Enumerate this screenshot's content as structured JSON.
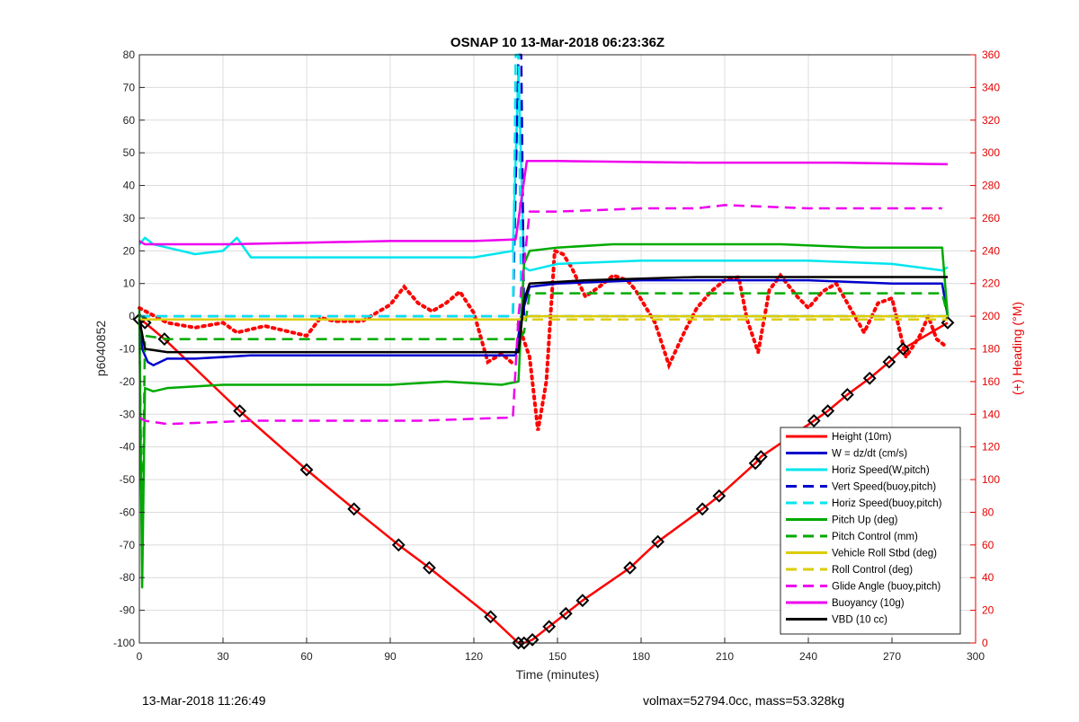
{
  "chart_data": {
    "type": "line",
    "title": "OSNAP 10 13-Mar-2018 06:23:36Z",
    "xlabel": "Time (minutes)",
    "ylabel": "p6040852",
    "y2label": "(+) Heading (°M)",
    "xlim": [
      0,
      300
    ],
    "ylim": [
      -100,
      80
    ],
    "y2lim": [
      0,
      360
    ],
    "xticks": [
      0,
      30,
      60,
      90,
      120,
      150,
      180,
      210,
      240,
      270,
      300
    ],
    "yticks": [
      -100,
      -90,
      -80,
      -70,
      -60,
      -50,
      -40,
      -30,
      -20,
      -10,
      0,
      10,
      20,
      30,
      40,
      50,
      60,
      70,
      80
    ],
    "y2ticks": [
      0,
      20,
      40,
      60,
      80,
      100,
      120,
      140,
      160,
      180,
      200,
      220,
      240,
      260,
      280,
      300,
      320,
      340,
      360
    ],
    "grid": true,
    "legend_position": "bottom-right",
    "series": [
      {
        "name": "Height (10m)",
        "color": "#ff0000",
        "style": "solid",
        "markers": true,
        "x": [
          0,
          2,
          9,
          36,
          60,
          77,
          93,
          104,
          126,
          136,
          138,
          141,
          147,
          153,
          159,
          176,
          186,
          202,
          208,
          221,
          223,
          242,
          247,
          254,
          262,
          269,
          274,
          290
        ],
        "y": [
          -1,
          -2,
          -7,
          -29,
          -47,
          -59,
          -70,
          -77,
          -92,
          -100,
          -100,
          -99,
          -95,
          -91,
          -87,
          -77,
          -69,
          -59,
          -55,
          -45,
          -43,
          -32,
          -29,
          -24,
          -19,
          -14,
          -10,
          -2
        ]
      },
      {
        "name": "W = dz/dt (cm/s)",
        "color": "#0000cc",
        "style": "solid",
        "x": [
          0,
          1,
          3,
          5,
          10,
          20,
          40,
          60,
          90,
          120,
          135,
          137,
          140,
          150,
          180,
          210,
          240,
          270,
          288,
          290
        ],
        "y": [
          0,
          -10,
          -14,
          -15,
          -13,
          -13,
          -12,
          -12,
          -12,
          -12,
          -12,
          0,
          9,
          10,
          11,
          11,
          11,
          10,
          10,
          0
        ]
      },
      {
        "name": "Horiz Speed(W,pitch)",
        "color": "#00e5ee",
        "style": "solid",
        "x": [
          0,
          2,
          5,
          10,
          20,
          30,
          35,
          40,
          60,
          90,
          120,
          134,
          136,
          138,
          140,
          150,
          180,
          210,
          240,
          270,
          288,
          290
        ],
        "y": [
          22,
          24,
          22,
          21,
          19,
          20,
          24,
          18,
          18,
          18,
          18,
          20,
          76,
          15,
          14,
          16,
          17,
          17,
          17,
          16,
          14,
          15
        ]
      },
      {
        "name": "Vert Speed(buoy,pitch)",
        "color": "#0000cc",
        "style": "dashed",
        "x": [
          0,
          10,
          134,
          136,
          137,
          138,
          140,
          290
        ],
        "y": [
          0,
          0,
          0,
          80,
          80,
          0,
          0,
          0
        ]
      },
      {
        "name": "Horiz Speed(buoy,pitch)",
        "color": "#00e5ee",
        "style": "dashed",
        "x": [
          0,
          10,
          134,
          135,
          136,
          137,
          140,
          290
        ],
        "y": [
          0,
          0,
          0,
          80,
          80,
          0,
          0,
          0
        ]
      },
      {
        "name": "Pitch Up (deg)",
        "color": "#00aa00",
        "style": "solid",
        "x": [
          0,
          1,
          2,
          5,
          10,
          30,
          60,
          90,
          110,
          130,
          136,
          138,
          140,
          150,
          170,
          200,
          230,
          260,
          288,
          290
        ],
        "y": [
          0,
          -83,
          -22,
          -23,
          -22,
          -21,
          -21,
          -21,
          -20,
          -21,
          -20,
          16,
          20,
          21,
          22,
          22,
          22,
          21,
          21,
          0
        ]
      },
      {
        "name": "Pitch Control (mm)",
        "color": "#00aa00",
        "style": "dashed",
        "x": [
          0,
          1,
          2,
          10,
          60,
          136,
          138,
          140,
          150,
          288,
          290
        ],
        "y": [
          2,
          -75,
          -6,
          -7,
          -7,
          -7,
          -5,
          7,
          7,
          7,
          0
        ]
      },
      {
        "name": "Vehicle Roll Stbd (deg)",
        "color": "#ddcc00",
        "style": "solid",
        "x": [
          0,
          10,
          60,
          120,
          136,
          140,
          200,
          260,
          290
        ],
        "y": [
          -1,
          -1,
          -1,
          -1,
          -1,
          0,
          0,
          0,
          0
        ]
      },
      {
        "name": "Roll Control (deg)",
        "color": "#ddcc00",
        "style": "dashed",
        "x": [
          0,
          10,
          60,
          120,
          136,
          140,
          200,
          260,
          290
        ],
        "y": [
          -1,
          -1,
          -1,
          -1,
          -1,
          -1,
          -1,
          -1,
          -1
        ]
      },
      {
        "name": "Glide Angle (buoy,pitch)",
        "color": "#ee00ee",
        "style": "dashed",
        "x": [
          0,
          2,
          10,
          40,
          70,
          100,
          134,
          136,
          140,
          150,
          180,
          200,
          210,
          240,
          270,
          288
        ],
        "y": [
          -31,
          -32,
          -33,
          -32,
          -32,
          -32,
          -31,
          0,
          32,
          32,
          33,
          33,
          34,
          33,
          33,
          33
        ]
      },
      {
        "name": "Buoyancy (10g)",
        "color": "#ee00ee",
        "style": "solid",
        "x": [
          0,
          2,
          30,
          60,
          90,
          120,
          135,
          139,
          150,
          200,
          250,
          290
        ],
        "y": [
          23,
          22,
          22,
          22.5,
          23,
          23,
          23.5,
          47.5,
          47.5,
          47,
          47,
          46.5
        ]
      },
      {
        "name": "VBD (10 cc)",
        "color": "#000000",
        "style": "solid",
        "x": [
          0,
          2,
          10,
          30,
          60,
          100,
          130,
          136,
          138,
          140,
          160,
          200,
          240,
          288,
          290
        ],
        "y": [
          -1,
          -10,
          -11,
          -11,
          -11,
          -11,
          -11,
          -11,
          5,
          10,
          11,
          12,
          12,
          12,
          12
        ]
      }
    ],
    "heading": {
      "color": "#ff0000",
      "style": "dotted",
      "segments": [
        {
          "x": [
            0,
            10,
            20,
            30,
            35,
            45,
            60,
            65,
            70,
            80,
            90,
            95,
            100,
            105,
            110,
            115,
            120,
            125,
            130,
            134
          ],
          "y": [
            205,
            196,
            193,
            196,
            190,
            194,
            188,
            199,
            197,
            197,
            207,
            218,
            208,
            203,
            208,
            215,
            202,
            172,
            177,
            171
          ]
        },
        {
          "x": [
            136,
            140,
            143,
            146,
            149,
            152,
            155,
            160,
            165,
            170,
            175,
            178,
            185,
            190,
            196,
            200,
            205,
            210,
            215,
            218,
            222,
            226,
            230,
            236,
            240,
            245,
            250,
            255,
            260,
            265,
            270,
            275,
            280,
            283,
            286,
            289
          ],
          "y": [
            195,
            175,
            130,
            160,
            240,
            238,
            230,
            212,
            218,
            225,
            222,
            216,
            196,
            170,
            192,
            205,
            215,
            222,
            224,
            198,
            178,
            216,
            225,
            212,
            205,
            215,
            220,
            205,
            190,
            208,
            211,
            175,
            188,
            200,
            186,
            182
          ]
        }
      ]
    },
    "footer_left": "13-Mar-2018 11:26:49",
    "footer_right": "volmax=52794.0cc, mass=53.328kg"
  }
}
